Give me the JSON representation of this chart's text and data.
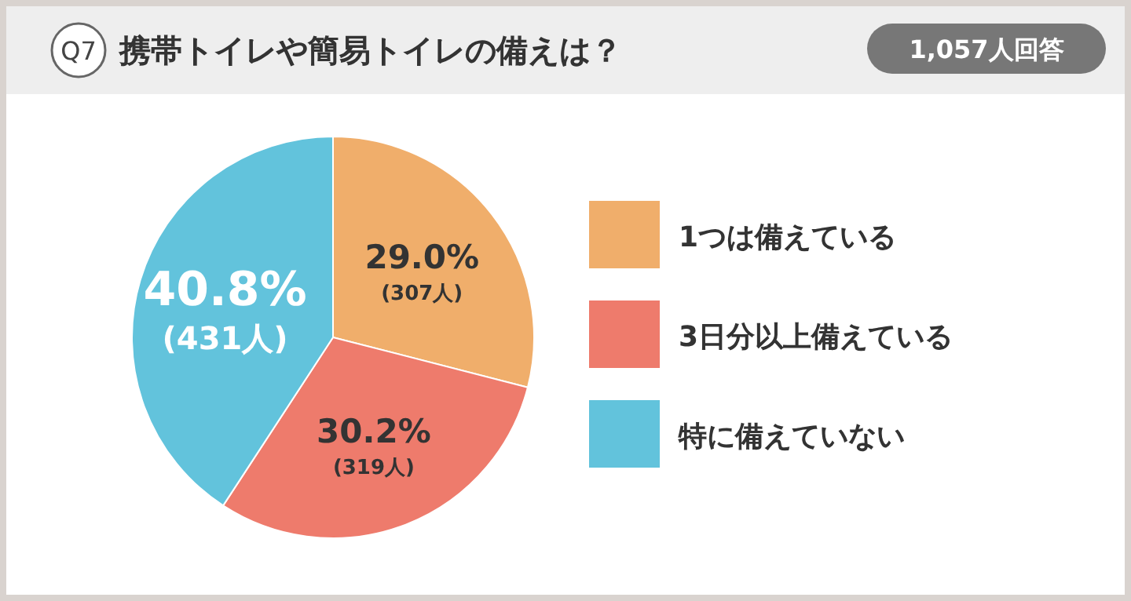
{
  "chart_data": {
    "type": "pie",
    "title": "携帯トイレや簡易トイレの備えは？",
    "annotations": [
      "Q7",
      "1,057人回答"
    ],
    "categories": [
      "1つは備えている",
      "3日分以上備えている",
      "特に備えていない"
    ],
    "values": [
      29.0,
      30.2,
      40.8
    ],
    "value_labels": [
      "29.0%\n(307人)",
      "30.2%\n(319人)",
      "40.8%\n(431人)"
    ],
    "colors": [
      "#f0ae6b",
      "#ee7b6c",
      "#62c3dc"
    ],
    "legend": "right"
  }
}
